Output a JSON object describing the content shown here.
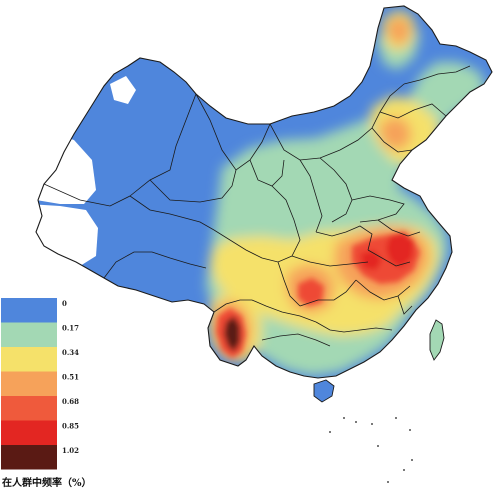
{
  "map": {
    "colors": {
      "blue": "#4f86dc",
      "teal": "#a3d8b4",
      "yellow": "#f5e16a",
      "orange": "#f6a25a",
      "red": "#ee4a34",
      "deep_red": "#e32622",
      "dark": "#5a1a14",
      "white_region": "#ffffff",
      "border": "#1b1b1b"
    }
  },
  "legend": {
    "caption": "在人群中频率（%）",
    "items": [
      {
        "label": "0",
        "color": "#4f86dc"
      },
      {
        "label": "0.17",
        "color": "#a3d8b4"
      },
      {
        "label": "0.34",
        "color": "#f5e16a"
      },
      {
        "label": "0.51",
        "color": "#f6a25a"
      },
      {
        "label": "0.68",
        "color": "#ef5a3c"
      },
      {
        "label": "0.85",
        "color": "#e32622"
      },
      {
        "label": "1.02",
        "color": "#5a1a14"
      }
    ]
  }
}
